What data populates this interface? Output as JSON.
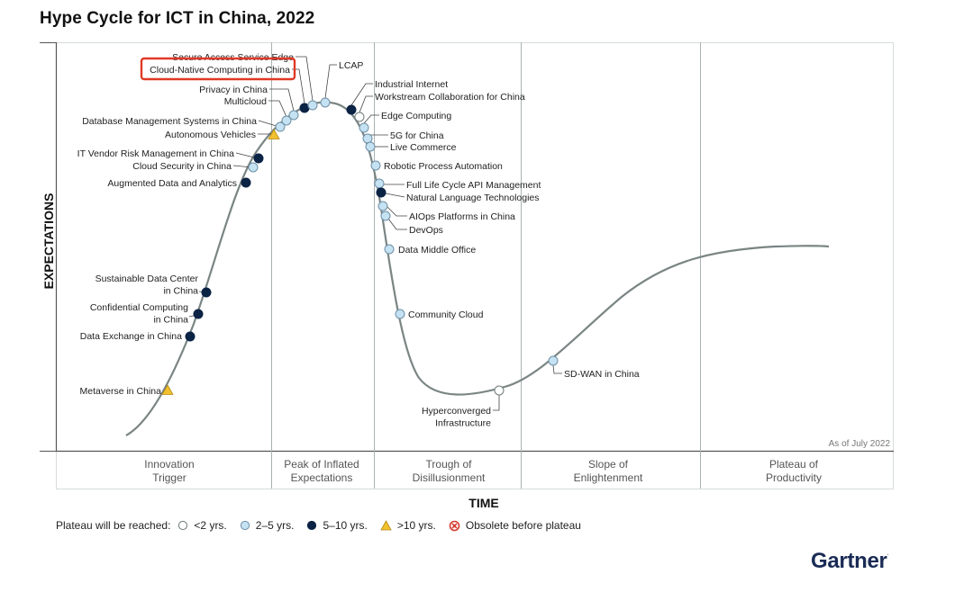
{
  "chart_data": {
    "type": "hype-cycle",
    "title": "Hype Cycle for ICT in China, 2022",
    "xlabel": "TIME",
    "ylabel": "EXPECTATIONS",
    "as_of": "As of July 2022",
    "phases": [
      [
        "Innovation",
        "Trigger"
      ],
      [
        "Peak of Inflated",
        "Expectations"
      ],
      [
        "Trough of",
        "Disillusionment"
      ],
      [
        "Slope of",
        "Enlightenment"
      ],
      [
        "Plateau of",
        "Productivity"
      ]
    ],
    "legend_lead": "Plateau will be reached:",
    "legend": [
      {
        "key": "lt2",
        "label": "<2 yrs."
      },
      {
        "key": "2to5",
        "label": "2–5 yrs."
      },
      {
        "key": "5to10",
        "label": "5–10 yrs."
      },
      {
        "key": "gt10",
        "label": ">10 yrs."
      },
      {
        "key": "obsolete",
        "label": "Obsolete before plateau"
      }
    ],
    "colors": {
      "lt2": "#ffffff",
      "2to5": "#c4e2f2",
      "5to10": "#0b2345",
      "gt10": "#f2c12e",
      "obsolete": "#d63a2f",
      "curve": "#7a8584",
      "highlight": "#e03a26"
    },
    "technologies": [
      {
        "name": "Metaverse in China",
        "phase": "Innovation Trigger",
        "plateau": "gt10"
      },
      {
        "name": "Data Exchange in China",
        "phase": "Innovation Trigger",
        "plateau": "5to10"
      },
      {
        "name": "Confidential Computing in China",
        "phase": "Innovation Trigger",
        "plateau": "5to10"
      },
      {
        "name": "Sustainable Data Center in China",
        "phase": "Innovation Trigger",
        "plateau": "5to10"
      },
      {
        "name": "Augmented Data and Analytics",
        "phase": "Innovation Trigger",
        "plateau": "5to10"
      },
      {
        "name": "Cloud Security in China",
        "phase": "Innovation Trigger",
        "plateau": "2to5"
      },
      {
        "name": "IT Vendor Risk Management in China",
        "phase": "Innovation Trigger",
        "plateau": "5to10"
      },
      {
        "name": "Autonomous Vehicles",
        "phase": "Peak of Inflated Expectations",
        "plateau": "gt10"
      },
      {
        "name": "Database Management Systems in China",
        "phase": "Peak of Inflated Expectations",
        "plateau": "2to5"
      },
      {
        "name": "Multicloud",
        "phase": "Peak of Inflated Expectations",
        "plateau": "2to5"
      },
      {
        "name": "Privacy in China",
        "phase": "Peak of Inflated Expectations",
        "plateau": "2to5"
      },
      {
        "name": "Cloud-Native Computing in China",
        "phase": "Peak of Inflated Expectations",
        "plateau": "5to10",
        "highlighted": true
      },
      {
        "name": "Secure Access Service Edge",
        "phase": "Peak of Inflated Expectations",
        "plateau": "2to5"
      },
      {
        "name": "LCAP",
        "phase": "Peak of Inflated Expectations",
        "plateau": "2to5"
      },
      {
        "name": "Industrial Internet",
        "phase": "Peak of Inflated Expectations",
        "plateau": "5to10"
      },
      {
        "name": "Workstream Collaboration for China",
        "phase": "Peak of Inflated Expectations",
        "plateau": "lt2"
      },
      {
        "name": "Edge Computing",
        "phase": "Trough of Disillusionment",
        "plateau": "2to5"
      },
      {
        "name": "5G for China",
        "phase": "Trough of Disillusionment",
        "plateau": "2to5"
      },
      {
        "name": "Live Commerce",
        "phase": "Trough of Disillusionment",
        "plateau": "2to5"
      },
      {
        "name": "Robotic Process Automation",
        "phase": "Trough of Disillusionment",
        "plateau": "2to5"
      },
      {
        "name": "Full Life Cycle API Management",
        "phase": "Trough of Disillusionment",
        "plateau": "2to5"
      },
      {
        "name": "Natural Language Technologies",
        "phase": "Trough of Disillusionment",
        "plateau": "5to10"
      },
      {
        "name": "AIOps Platforms in China",
        "phase": "Trough of Disillusionment",
        "plateau": "2to5"
      },
      {
        "name": "DevOps",
        "phase": "Trough of Disillusionment",
        "plateau": "2to5"
      },
      {
        "name": "Data Middle Office",
        "phase": "Trough of Disillusionment",
        "plateau": "2to5"
      },
      {
        "name": "Community Cloud",
        "phase": "Trough of Disillusionment",
        "plateau": "2to5"
      },
      {
        "name": "Hyperconverged Infrastructure",
        "phase": "Trough of Disillusionment",
        "plateau": "lt2"
      },
      {
        "name": "SD-WAN in China",
        "phase": "Slope of Enlightenment",
        "plateau": "2to5"
      }
    ]
  },
  "brand": "Gartner"
}
